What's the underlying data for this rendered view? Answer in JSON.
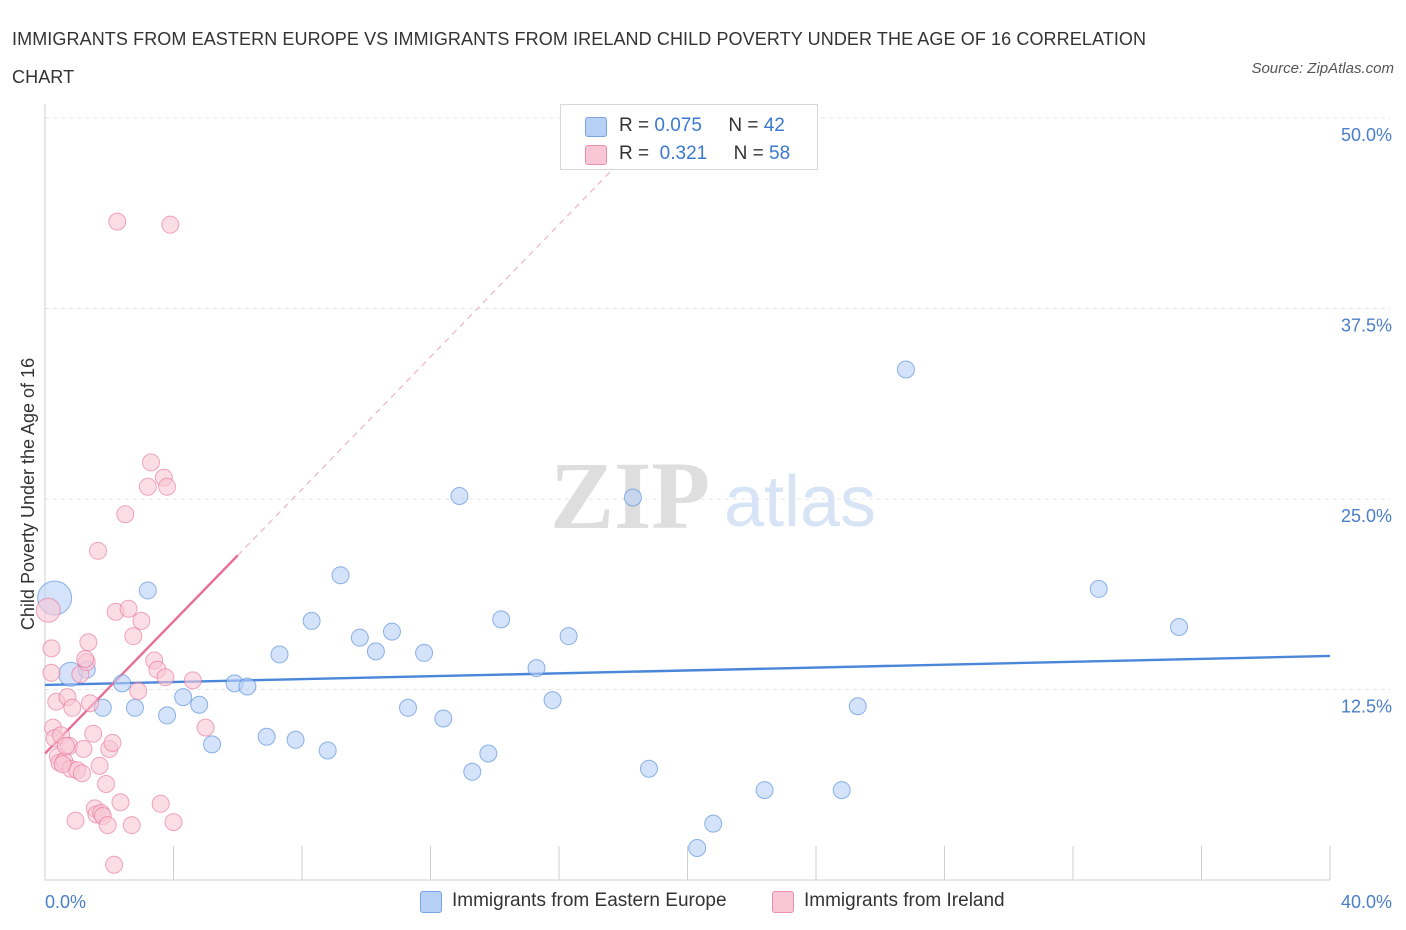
{
  "title": "IMMIGRANTS FROM EASTERN EUROPE VS IMMIGRANTS FROM IRELAND CHILD POVERTY UNDER THE AGE OF 16 CORRELATION CHART",
  "source": "Source: ZipAtlas.com",
  "watermark": {
    "zip": "ZIP",
    "atlas": "atlas"
  },
  "legend": {
    "r_label": "R =",
    "n_label": "N =",
    "rows": [
      {
        "r": "0.075",
        "n": "42",
        "color": "#b7d0f5",
        "border": "#7aa3e0"
      },
      {
        "r": "0.321",
        "n": "58",
        "color": "#f8c6d5",
        "border": "#ec8fab"
      }
    ]
  },
  "bottom_legend": [
    {
      "label": "Immigrants from Eastern Europe",
      "color": "#b7d0f5",
      "border": "#7aa3e0"
    },
    {
      "label": "Immigrants from Ireland",
      "color": "#f8c6d5",
      "border": "#ec8fab"
    }
  ],
  "chart_data": {
    "type": "scatter",
    "title": "IMMIGRANTS FROM EASTERN EUROPE VS IMMIGRANTS FROM IRELAND CHILD POVERTY UNDER THE AGE OF 16 CORRELATION CHART",
    "xlabel": "",
    "ylabel": "Child Poverty Under the Age of 16",
    "xlim": [
      0,
      40
    ],
    "ylim": [
      0,
      50
    ],
    "x_tick_labels": [
      "0.0%",
      "40.0%"
    ],
    "y_ticks": [
      12.5,
      25.0,
      37.5,
      50.0
    ],
    "y_tick_labels": [
      "12.5%",
      "25.0%",
      "37.5%",
      "50.0%"
    ],
    "grid": true,
    "legend_position": "top-center",
    "series": [
      {
        "name": "Immigrants from Eastern Europe",
        "color": "#4a86d9",
        "fill": "#b7d0f5",
        "trend": {
          "x": [
            0,
            40
          ],
          "y": [
            12.8,
            14.7
          ],
          "style": "solid"
        },
        "points": [
          {
            "x": 0.3,
            "y": 18.5,
            "size": "large"
          },
          {
            "x": 0.8,
            "y": 13.5,
            "size": "medium"
          },
          {
            "x": 1.3,
            "y": 13.8
          },
          {
            "x": 1.8,
            "y": 11.3
          },
          {
            "x": 2.4,
            "y": 12.9
          },
          {
            "x": 2.8,
            "y": 11.3
          },
          {
            "x": 3.2,
            "y": 19.0
          },
          {
            "x": 3.8,
            "y": 10.8
          },
          {
            "x": 4.3,
            "y": 12.0
          },
          {
            "x": 4.8,
            "y": 11.5
          },
          {
            "x": 5.2,
            "y": 8.9
          },
          {
            "x": 5.9,
            "y": 12.9
          },
          {
            "x": 6.3,
            "y": 12.7
          },
          {
            "x": 6.9,
            "y": 9.4
          },
          {
            "x": 7.3,
            "y": 14.8
          },
          {
            "x": 7.8,
            "y": 9.2
          },
          {
            "x": 8.3,
            "y": 17.0
          },
          {
            "x": 8.8,
            "y": 8.5
          },
          {
            "x": 9.2,
            "y": 20.0
          },
          {
            "x": 9.8,
            "y": 15.9
          },
          {
            "x": 10.3,
            "y": 15.0
          },
          {
            "x": 10.8,
            "y": 16.3
          },
          {
            "x": 11.3,
            "y": 11.3
          },
          {
            "x": 11.8,
            "y": 14.9
          },
          {
            "x": 12.4,
            "y": 10.6
          },
          {
            "x": 12.9,
            "y": 25.2
          },
          {
            "x": 13.3,
            "y": 7.1
          },
          {
            "x": 13.8,
            "y": 8.3
          },
          {
            "x": 14.2,
            "y": 17.1
          },
          {
            "x": 15.3,
            "y": 13.9
          },
          {
            "x": 15.8,
            "y": 11.8
          },
          {
            "x": 16.3,
            "y": 16.0
          },
          {
            "x": 18.3,
            "y": 25.1
          },
          {
            "x": 18.8,
            "y": 7.3
          },
          {
            "x": 20.3,
            "y": 2.1
          },
          {
            "x": 20.8,
            "y": 3.7
          },
          {
            "x": 22.4,
            "y": 5.9
          },
          {
            "x": 24.8,
            "y": 5.9
          },
          {
            "x": 25.3,
            "y": 11.4
          },
          {
            "x": 26.8,
            "y": 33.5
          },
          {
            "x": 32.8,
            "y": 19.1
          },
          {
            "x": 35.3,
            "y": 16.6
          }
        ]
      },
      {
        "name": "Immigrants from Ireland",
        "color": "#e86f96",
        "fill": "#f8c6d5",
        "trend": {
          "x": [
            0,
            6.0
          ],
          "y": [
            8.3,
            21.3
          ],
          "style": "solid",
          "extension": {
            "x": [
              6.0,
              17.7
            ],
            "y": [
              21.3,
              46.7
            ],
            "style": "dashed"
          }
        },
        "points": [
          {
            "x": 0.1,
            "y": 17.7,
            "size": "medium"
          },
          {
            "x": 0.2,
            "y": 13.6
          },
          {
            "x": 0.2,
            "y": 15.2
          },
          {
            "x": 0.25,
            "y": 10.0
          },
          {
            "x": 0.3,
            "y": 9.3
          },
          {
            "x": 0.35,
            "y": 11.7
          },
          {
            "x": 0.4,
            "y": 8.1
          },
          {
            "x": 0.45,
            "y": 7.7
          },
          {
            "x": 0.5,
            "y": 9.5
          },
          {
            "x": 0.6,
            "y": 7.8
          },
          {
            "x": 0.7,
            "y": 12.0
          },
          {
            "x": 0.75,
            "y": 8.8
          },
          {
            "x": 0.8,
            "y": 7.3
          },
          {
            "x": 0.85,
            "y": 11.3
          },
          {
            "x": 0.95,
            "y": 3.9
          },
          {
            "x": 1.0,
            "y": 7.2
          },
          {
            "x": 1.1,
            "y": 13.5
          },
          {
            "x": 1.15,
            "y": 7.0
          },
          {
            "x": 1.2,
            "y": 8.6
          },
          {
            "x": 1.3,
            "y": 14.3
          },
          {
            "x": 1.35,
            "y": 15.6
          },
          {
            "x": 1.4,
            "y": 11.6
          },
          {
            "x": 1.5,
            "y": 9.6
          },
          {
            "x": 1.55,
            "y": 4.7
          },
          {
            "x": 1.6,
            "y": 4.3
          },
          {
            "x": 1.65,
            "y": 21.6
          },
          {
            "x": 1.7,
            "y": 7.5
          },
          {
            "x": 1.75,
            "y": 4.4
          },
          {
            "x": 1.8,
            "y": 4.2
          },
          {
            "x": 1.9,
            "y": 6.3
          },
          {
            "x": 1.95,
            "y": 3.6
          },
          {
            "x": 2.0,
            "y": 8.6
          },
          {
            "x": 2.1,
            "y": 9.0
          },
          {
            "x": 2.15,
            "y": 1.0
          },
          {
            "x": 2.2,
            "y": 17.6
          },
          {
            "x": 2.25,
            "y": 43.2
          },
          {
            "x": 2.35,
            "y": 5.1
          },
          {
            "x": 2.5,
            "y": 24.0
          },
          {
            "x": 2.6,
            "y": 17.8
          },
          {
            "x": 2.7,
            "y": 3.6
          },
          {
            "x": 2.75,
            "y": 16.0
          },
          {
            "x": 2.9,
            "y": 12.4
          },
          {
            "x": 3.0,
            "y": 17.0
          },
          {
            "x": 3.2,
            "y": 25.8
          },
          {
            "x": 3.3,
            "y": 27.4
          },
          {
            "x": 3.4,
            "y": 14.4
          },
          {
            "x": 3.5,
            "y": 13.8
          },
          {
            "x": 3.6,
            "y": 5.0
          },
          {
            "x": 3.7,
            "y": 26.4
          },
          {
            "x": 3.75,
            "y": 13.3
          },
          {
            "x": 3.8,
            "y": 25.8
          },
          {
            "x": 3.9,
            "y": 43.0
          },
          {
            "x": 4.0,
            "y": 3.8
          },
          {
            "x": 4.6,
            "y": 13.1
          },
          {
            "x": 5.0,
            "y": 10.0
          },
          {
            "x": 0.55,
            "y": 7.6
          },
          {
            "x": 0.65,
            "y": 8.8
          },
          {
            "x": 1.25,
            "y": 14.5
          }
        ]
      }
    ]
  }
}
